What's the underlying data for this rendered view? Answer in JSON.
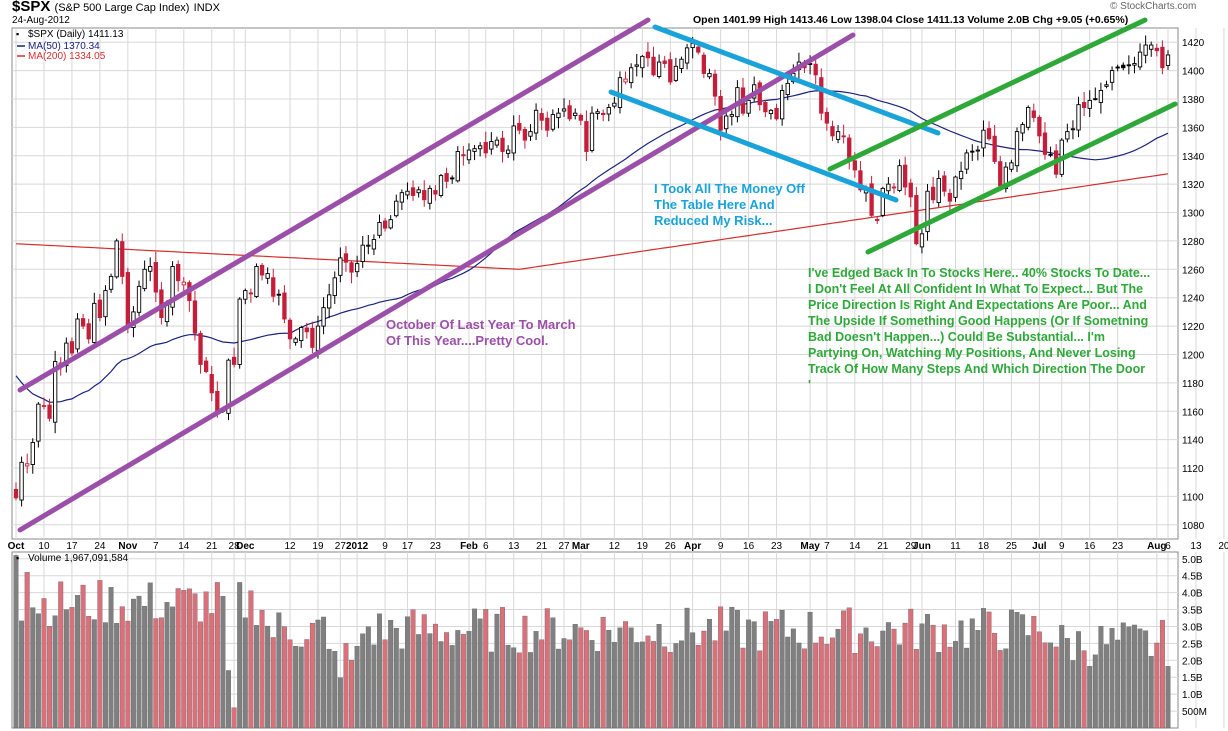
{
  "header": {
    "symbol": "$SPX",
    "symbol_desc": "(S&P 500 Large Cap Index)",
    "exchange": "INDX",
    "date": "24-Aug-2012",
    "ohlc_label": "Open 1401.99  High 1413.46  Low 1398.04  Close 1411.13  Volume 2.0B  Chg +9.05 (+0.65%)",
    "watermark": "© StockCharts.com"
  },
  "legend": {
    "price": "$SPX (Daily) 1411.13",
    "ma50": "MA(50) 1370.34",
    "ma200": "MA(200) 1334.05",
    "volume": "Volume 1,967,091,584"
  },
  "annotations": {
    "purple": [
      "October Of Last Year To March",
      "Of This Year....Pretty Cool."
    ],
    "blue": [
      "I Took All The Money Off",
      "The Table Here And",
      "Reduced My Risk..."
    ],
    "green": [
      "I've Edged Back In To Stocks Here.. 40% Stocks To Date...",
      "I Don't Feel At All Confident In What To Expect... But The",
      "Price Direction Is Right And Expectations Are Poor... And",
      "The Upside If Something Good Happens (Or If Sometning",
      "Bad Doesn't Happen...) Could Be Substantial... I'm",
      "Partying On, Watching My Positions, And Never Losing",
      "Track Of How Many Steps And Which Direction The Door",
      "'"
    ]
  },
  "colors": {
    "up": "#000000",
    "down": "#c41e3a",
    "ma50": "#1a237e",
    "ma200": "#d32f2f",
    "purple_channel": "#9b4fa8",
    "blue_channel": "#1aa3d9",
    "green_channel": "#2fa83a",
    "vol_up": "#808080",
    "vol_down": "#d9707a",
    "grid": "#d8d8d8"
  },
  "chart_data": {
    "type": "candlestick",
    "price_axis": {
      "min": 1070,
      "max": 1430,
      "ticks": [
        1080,
        1100,
        1120,
        1140,
        1160,
        1180,
        1200,
        1220,
        1240,
        1260,
        1280,
        1300,
        1320,
        1340,
        1360,
        1380,
        1400,
        1420
      ]
    },
    "volume_axis": {
      "min": 0,
      "max": 5.2,
      "unit": "B",
      "ticks": [
        "5.0B",
        "4.5B",
        "4.0B",
        "3.5B",
        "3.0B",
        "2.5B",
        "2.0B",
        "1.5B",
        "1.0B",
        "500M"
      ],
      "tick_values": [
        5.0,
        4.5,
        4.0,
        3.5,
        3.0,
        2.5,
        2.0,
        1.5,
        1.0,
        0.5
      ]
    },
    "x_labels": [
      {
        "i": 0,
        "t": "Oct"
      },
      {
        "i": 5,
        "t": "10"
      },
      {
        "i": 10,
        "t": "17"
      },
      {
        "i": 15,
        "t": "24"
      },
      {
        "i": 20,
        "t": "Nov"
      },
      {
        "i": 25,
        "t": "7"
      },
      {
        "i": 30,
        "t": "14"
      },
      {
        "i": 35,
        "t": "21"
      },
      {
        "i": 39,
        "t": "28"
      },
      {
        "i": 41,
        "t": "Dec"
      },
      {
        "i": 49,
        "t": "12"
      },
      {
        "i": 54,
        "t": "19"
      },
      {
        "i": 58,
        "t": "27"
      },
      {
        "i": 61,
        "t": "2012"
      },
      {
        "i": 66,
        "t": "9"
      },
      {
        "i": 70,
        "t": "17"
      },
      {
        "i": 75,
        "t": "23"
      },
      {
        "i": 81,
        "t": "Feb"
      },
      {
        "i": 84,
        "t": "6"
      },
      {
        "i": 89,
        "t": "13"
      },
      {
        "i": 94,
        "t": "21"
      },
      {
        "i": 98,
        "t": "27"
      },
      {
        "i": 101,
        "t": "Mar"
      },
      {
        "i": 107,
        "t": "12"
      },
      {
        "i": 112,
        "t": "19"
      },
      {
        "i": 117,
        "t": "26"
      },
      {
        "i": 121,
        "t": "Apr"
      },
      {
        "i": 126,
        "t": "9"
      },
      {
        "i": 131,
        "t": "16"
      },
      {
        "i": 136,
        "t": "23"
      },
      {
        "i": 142,
        "t": "May"
      },
      {
        "i": 145,
        "t": "7"
      },
      {
        "i": 150,
        "t": "14"
      },
      {
        "i": 155,
        "t": "21"
      },
      {
        "i": 160,
        "t": "29"
      },
      {
        "i": 162,
        "t": "Jun"
      },
      {
        "i": 168,
        "t": "11"
      },
      {
        "i": 173,
        "t": "18"
      },
      {
        "i": 178,
        "t": "25"
      },
      {
        "i": 183,
        "t": "Jul"
      },
      {
        "i": 187,
        "t": "9"
      },
      {
        "i": 192,
        "t": "16"
      },
      {
        "i": 197,
        "t": "23"
      },
      {
        "i": 204,
        "t": "Aug"
      },
      {
        "i": 206,
        "t": "6"
      },
      {
        "i": 211,
        "t": "13"
      },
      {
        "i": 216,
        "t": "20"
      }
    ],
    "closes": [
      1099,
      1124,
      1123,
      1138,
      1165,
      1164,
      1155,
      1195,
      1194,
      1208,
      1201,
      1225,
      1220,
      1211,
      1236,
      1226,
      1245,
      1255,
      1280,
      1255,
      1219,
      1230,
      1248,
      1260,
      1262,
      1244,
      1226,
      1235,
      1262,
      1252,
      1251,
      1238,
      1215,
      1193,
      1188,
      1173,
      1158,
      1161,
      1196,
      1193,
      1239,
      1245,
      1243,
      1262,
      1256,
      1257,
      1241,
      1242,
      1225,
      1211,
      1211,
      1219,
      1216,
      1205,
      1220,
      1233,
      1242,
      1254,
      1268,
      1265,
      1258,
      1264,
      1277,
      1277,
      1281,
      1293,
      1289,
      1295,
      1308,
      1314,
      1315,
      1312,
      1316,
      1309,
      1317,
      1313,
      1326,
      1322,
      1324,
      1343,
      1340,
      1344,
      1345,
      1347,
      1342,
      1350,
      1351,
      1343,
      1344,
      1361,
      1358,
      1351,
      1357,
      1372,
      1365,
      1358,
      1369,
      1370,
      1373,
      1366,
      1370,
      1365,
      1343,
      1370,
      1371,
      1369,
      1374,
      1377,
      1395,
      1394,
      1402,
      1404,
      1410,
      1409,
      1397,
      1406,
      1405,
      1392,
      1403,
      1408,
      1416,
      1419,
      1413,
      1398,
      1398,
      1382,
      1358,
      1368,
      1369,
      1388,
      1370,
      1379,
      1390,
      1376,
      1371,
      1372,
      1366,
      1386,
      1391,
      1398,
      1406,
      1402,
      1405,
      1397,
      1370,
      1363,
      1354,
      1357,
      1354,
      1338,
      1330,
      1316,
      1318,
      1298,
      1295,
      1317,
      1320,
      1318,
      1333,
      1318,
      1311,
      1278,
      1285,
      1315,
      1309,
      1324,
      1315,
      1308,
      1325,
      1329,
      1342,
      1343,
      1344,
      1358,
      1352,
      1336,
      1319,
      1332,
      1335,
      1357,
      1362,
      1374,
      1367,
      1354,
      1341,
      1341,
      1327,
      1351,
      1357,
      1359,
      1376,
      1374,
      1379,
      1380,
      1386,
      1390,
      1400,
      1402,
      1402,
      1404,
      1405,
      1413,
      1418,
      1418,
      1414,
      1402,
      1411
    ],
    "series": [
      {
        "name": "$SPX (Daily) 1411.13",
        "kind": "candles"
      },
      {
        "name": "MA(50) 1370.34",
        "kind": "line"
      },
      {
        "name": "MA(200) 1334.05",
        "kind": "line"
      }
    ]
  }
}
